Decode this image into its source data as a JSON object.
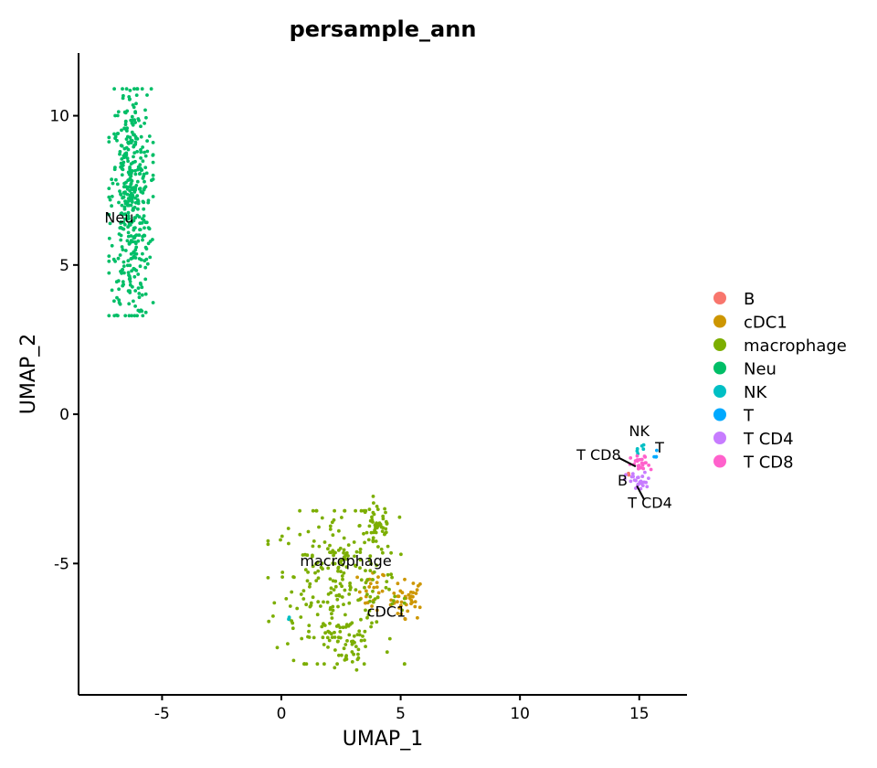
{
  "chart_data": {
    "type": "scatter",
    "title": "persample_ann",
    "xlabel": "UMAP_1",
    "ylabel": "UMAP_2",
    "xlim": [
      -8.5,
      17
    ],
    "ylim": [
      -9.4,
      12.1
    ],
    "xticks": [
      -5,
      0,
      5,
      10,
      15
    ],
    "yticks": [
      -5,
      0,
      5,
      10
    ],
    "grid": false,
    "legend_position": "right",
    "series": [
      {
        "name": "B",
        "color": "#F8766D",
        "clusters": [
          {
            "cx": 14.6,
            "cy": -2.15,
            "sx": 0.12,
            "sy": 0.12,
            "n": 2
          }
        ]
      },
      {
        "name": "cDC1",
        "color": "#CD9600",
        "clusters": [
          {
            "cx": 5.3,
            "cy": -6.2,
            "sx": 0.35,
            "sy": 0.35,
            "n": 40
          },
          {
            "cx": 3.8,
            "cy": -5.9,
            "sx": 0.3,
            "sy": 0.35,
            "n": 25
          }
        ]
      },
      {
        "name": "macrophage",
        "color": "#7CAE00",
        "clusters": [
          {
            "cx": 2.3,
            "cy": -5.8,
            "sx": 1.3,
            "sy": 1.35,
            "n": 260
          },
          {
            "cx": 4.0,
            "cy": -3.7,
            "sx": 0.35,
            "sy": 0.5,
            "n": 50
          },
          {
            "cx": 2.7,
            "cy": -7.9,
            "sx": 0.5,
            "sy": 0.4,
            "n": 30
          }
        ]
      },
      {
        "name": "Neu",
        "color": "#00BE67",
        "clusters": [
          {
            "cx": -6.3,
            "cy": 7.1,
            "sx": 0.42,
            "sy": 2.0,
            "n": 420
          }
        ]
      },
      {
        "name": "NK",
        "color": "#00BFC4",
        "clusters": [
          {
            "cx": 15.0,
            "cy": -1.15,
            "sx": 0.13,
            "sy": 0.09,
            "n": 6
          },
          {
            "cx": 0.3,
            "cy": -6.85,
            "sx": 0.12,
            "sy": 0.05,
            "n": 2
          }
        ]
      },
      {
        "name": "T",
        "color": "#00A9FF",
        "clusters": [
          {
            "cx": 15.65,
            "cy": -1.4,
            "sx": 0.06,
            "sy": 0.1,
            "n": 4
          }
        ]
      },
      {
        "name": "T CD4",
        "color": "#C77CFF",
        "clusters": [
          {
            "cx": 15.0,
            "cy": -2.25,
            "sx": 0.28,
            "sy": 0.16,
            "n": 28
          }
        ]
      },
      {
        "name": "T CD8",
        "color": "#FF61CC",
        "clusters": [
          {
            "cx": 15.05,
            "cy": -1.7,
            "sx": 0.2,
            "sy": 0.16,
            "n": 26
          }
        ]
      }
    ],
    "cluster_labels": [
      {
        "text": "Neu",
        "x": -6.8,
        "y": 6.6
      },
      {
        "text": "macrophage",
        "x": 2.7,
        "y": -4.9
      },
      {
        "text": "cDC1",
        "x": 4.4,
        "y": -6.6
      },
      {
        "text": "NK",
        "x": 15.0,
        "y": -0.55
      },
      {
        "text": "T",
        "x": 15.85,
        "y": -1.1
      },
      {
        "text": "T CD8",
        "x": 13.3,
        "y": -1.35
      },
      {
        "text": "B",
        "x": 14.3,
        "y": -2.2
      },
      {
        "text": "T CD4",
        "x": 15.45,
        "y": -2.95
      }
    ],
    "leader_lines": [
      {
        "from": [
          14.12,
          -1.45
        ],
        "to": [
          14.85,
          -1.75
        ]
      },
      {
        "from": [
          15.2,
          -2.85
        ],
        "to": [
          14.9,
          -2.4
        ]
      }
    ]
  }
}
